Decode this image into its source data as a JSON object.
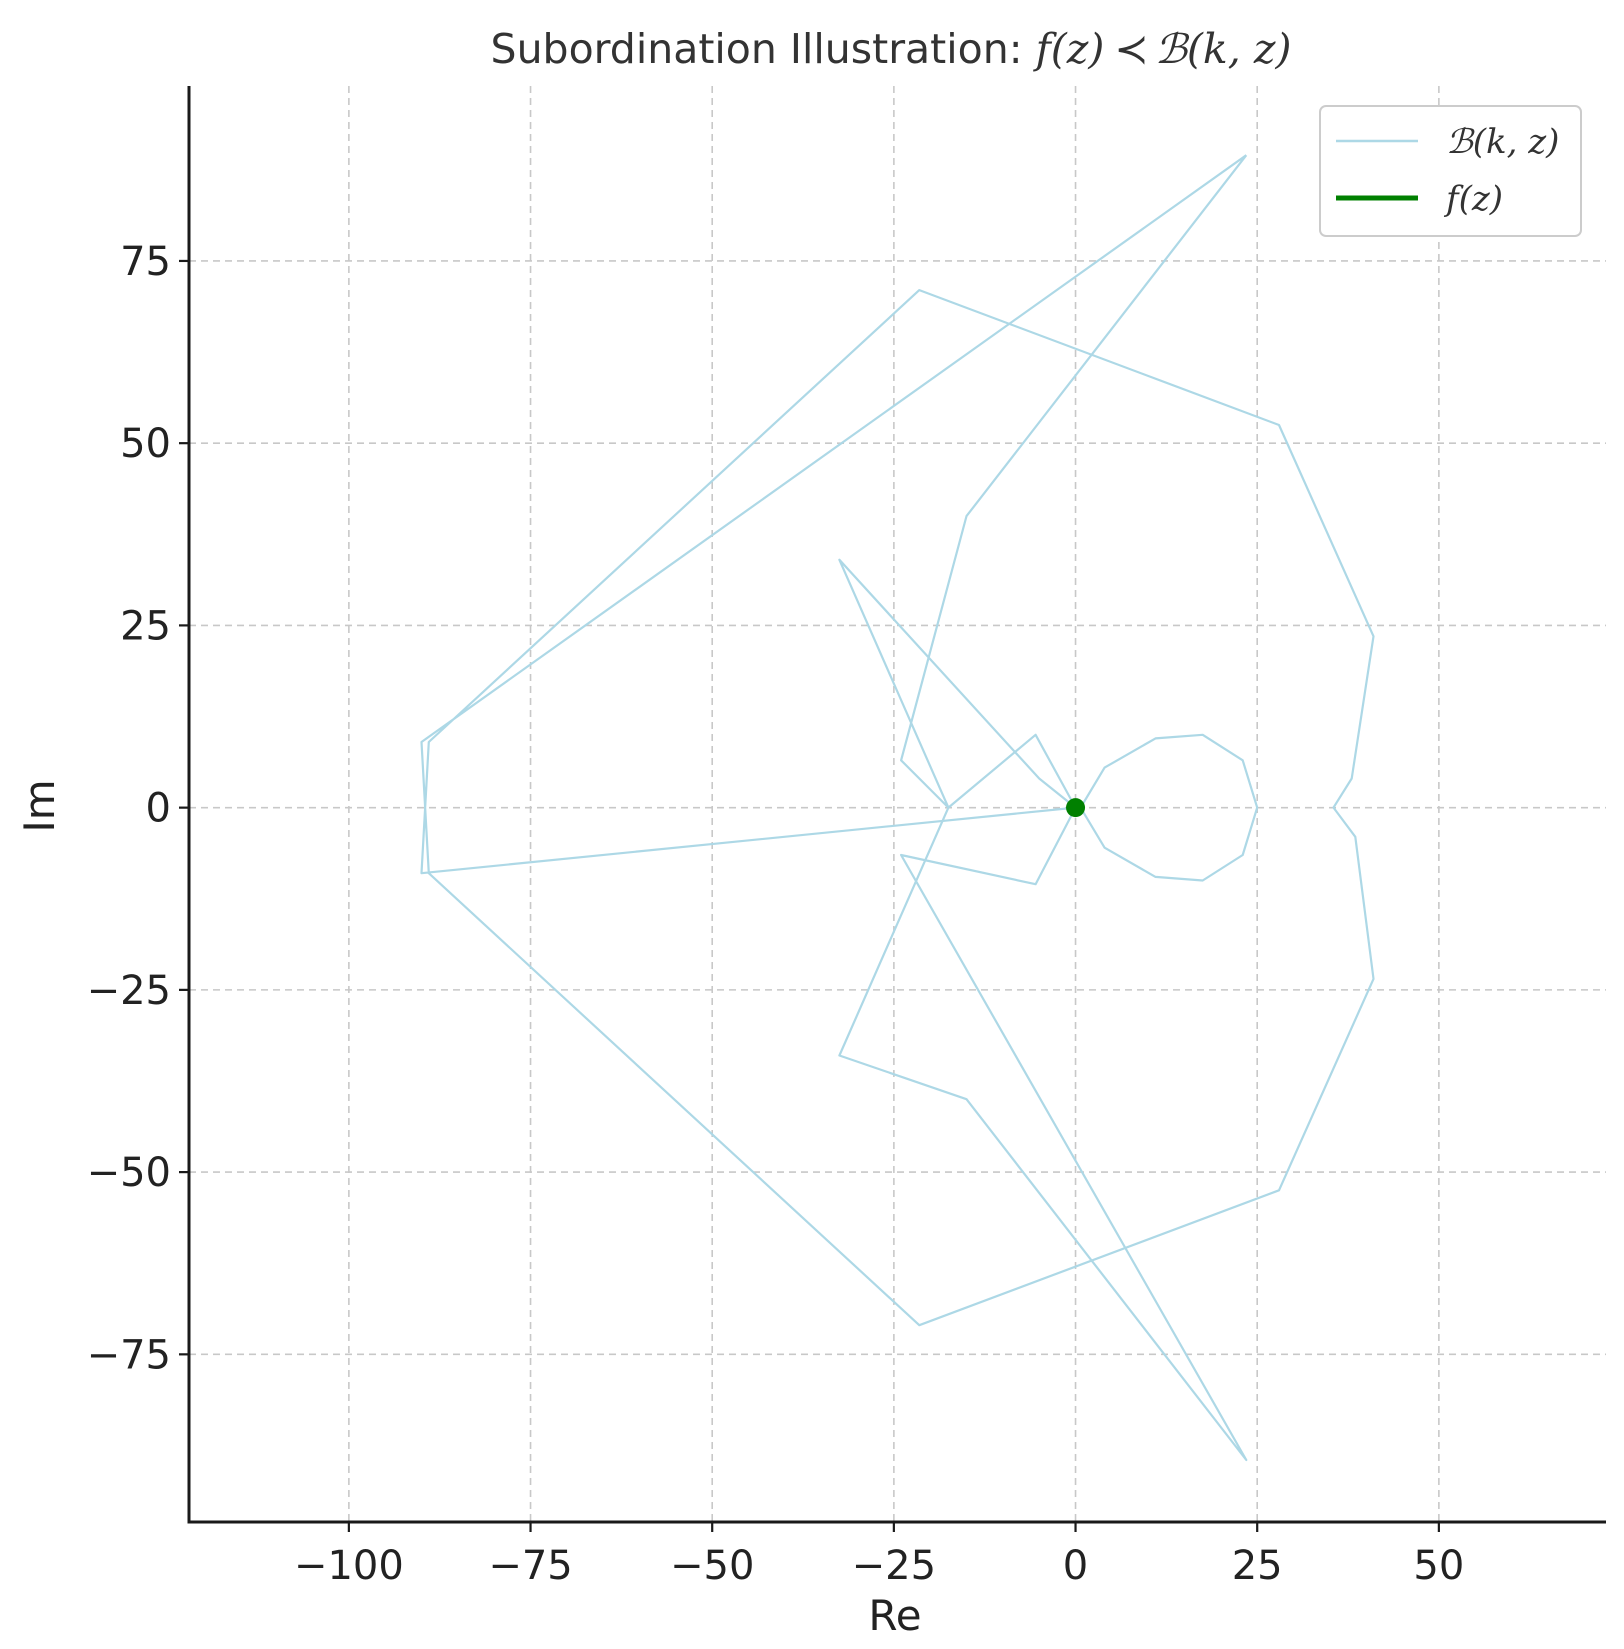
{
  "chart_data": {
    "type": "line",
    "title": "Subordination Illustration: f(z) ≺ ℬ(k, z)",
    "title_parts": {
      "prefix": "Subordination Illustration: ",
      "lhs": "f(z)",
      "relation": "≺",
      "rhs": "ℬ(k, z)"
    },
    "xlabel": "Re",
    "ylabel": "Im",
    "xlim": [
      -122,
      73
    ],
    "ylim": [
      -98,
      99
    ],
    "xticks": [
      -100,
      -75,
      -50,
      -25,
      0,
      25,
      50
    ],
    "yticks": [
      -75,
      -50,
      -25,
      0,
      25,
      50,
      75
    ],
    "xtick_labels": [
      "−100",
      "−75",
      "−50",
      "−25",
      "0",
      "25",
      "50"
    ],
    "ytick_labels": [
      "−75",
      "−50",
      "−25",
      "0",
      "25",
      "50",
      "75"
    ],
    "grid": true,
    "legend_position": "top-right",
    "series": [
      {
        "name": "ℬ(k, z)",
        "color": "#add8e6",
        "points": [
          [
            23.5,
            89.5
          ],
          [
            -15.0,
            40.0
          ],
          [
            -24.0,
            6.5
          ],
          [
            -17.5,
            0.0
          ],
          [
            -32.5,
            34.0
          ],
          [
            -5.0,
            4.0
          ],
          [
            0.0,
            0.0
          ],
          [
            1.0,
            0.5
          ],
          [
            4.0,
            5.5
          ],
          [
            11.0,
            9.5
          ],
          [
            17.5,
            10.0
          ],
          [
            23.0,
            6.5
          ],
          [
            25.0,
            0.0
          ],
          [
            23.0,
            -6.5
          ],
          [
            17.5,
            -10.0
          ],
          [
            11.0,
            -9.5
          ],
          [
            4.0,
            -5.5
          ],
          [
            1.0,
            -0.5
          ],
          [
            0.0,
            0.0
          ],
          [
            -5.5,
            10.0
          ],
          [
            -17.5,
            0.0
          ],
          [
            -32.5,
            -34.0
          ],
          [
            -15.0,
            -40.0
          ],
          [
            23.5,
            -89.5
          ],
          [
            -24.0,
            -6.5
          ],
          [
            -5.5,
            -10.5
          ],
          [
            0.0,
            0.0
          ],
          [
            -90.0,
            -9.0
          ],
          [
            -89.0,
            9.0
          ],
          [
            -21.5,
            71.0
          ],
          [
            28.0,
            52.5
          ],
          [
            41.0,
            23.5
          ],
          [
            38.0,
            4.0
          ],
          [
            35.5,
            0.0
          ],
          [
            38.5,
            -4.0
          ],
          [
            41.0,
            -23.5
          ],
          [
            28.0,
            -52.5
          ],
          [
            -21.5,
            -71.0
          ],
          [
            -89.0,
            -9.0
          ],
          [
            -90.0,
            9.0
          ],
          [
            23.5,
            89.5
          ]
        ]
      },
      {
        "name": "f(z)",
        "color": "#008000",
        "points": [
          [
            0.0,
            0.0
          ],
          [
            0.2,
            0.1
          ],
          [
            0.3,
            0.0
          ],
          [
            0.2,
            -0.1
          ],
          [
            0.0,
            0.0
          ]
        ]
      }
    ]
  }
}
